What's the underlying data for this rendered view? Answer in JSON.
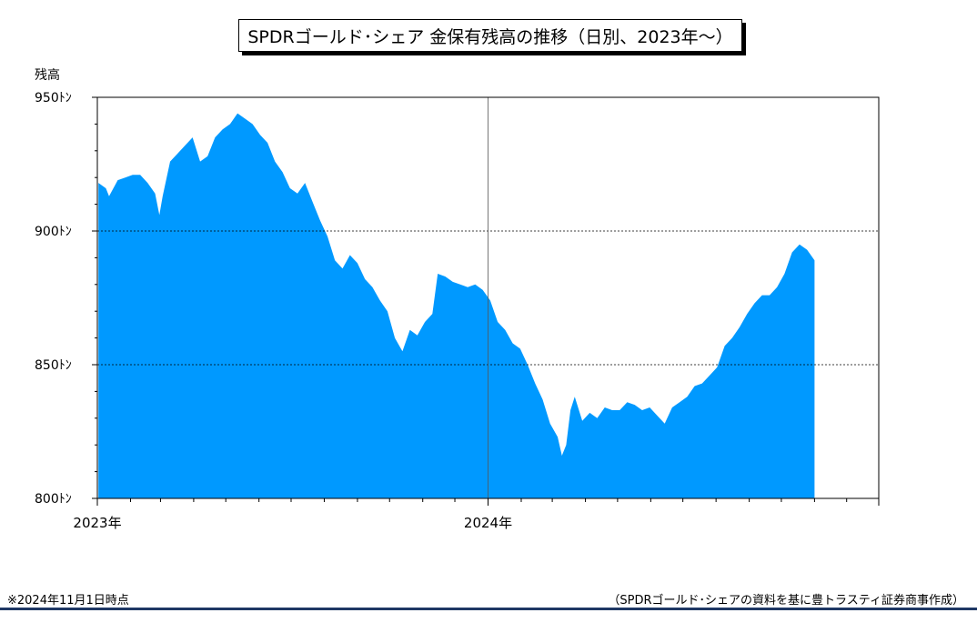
{
  "colors": {
    "area": "#0099ff",
    "rule": "#1f3864"
  },
  "footer": {
    "note": "※2024年11月1日時点",
    "source": "（SPDRゴールド･シェアの資料を基に豊トラスティ証券商事作成）"
  },
  "chart_data": {
    "type": "area",
    "title": "SPDRゴールド･シェア 金保有残高の推移（日別、2023年～）",
    "ylabel": "残高",
    "xlabel": "",
    "ylim": [
      800,
      950
    ],
    "y_ticks": [
      {
        "value": 800,
        "label": "800ﾄﾝ"
      },
      {
        "value": 850,
        "label": "850ﾄﾝ"
      },
      {
        "value": 900,
        "label": "900ﾄﾝ"
      },
      {
        "value": 950,
        "label": "950ﾄﾝ"
      }
    ],
    "x_ticks": [
      {
        "date": "2023-01-01",
        "label": "2023年"
      },
      {
        "date": "2024-01-01",
        "label": "2024年"
      }
    ],
    "xlim": [
      "2023-01-01",
      "2024-12-31"
    ],
    "legend": "none",
    "grid": "horizontal dashed at 850 and 900; vertical at 2024-01-01",
    "series": [
      {
        "values": [
          [
            "2023-01-02",
            918
          ],
          [
            "2023-01-09",
            916
          ],
          [
            "2023-01-12",
            913
          ],
          [
            "2023-01-20",
            919
          ],
          [
            "2023-01-27",
            920
          ],
          [
            "2023-02-03",
            921
          ],
          [
            "2023-02-10",
            921
          ],
          [
            "2023-02-17",
            918
          ],
          [
            "2023-02-24",
            914
          ],
          [
            "2023-02-28",
            906
          ],
          [
            "2023-03-03",
            913
          ],
          [
            "2023-03-10",
            926
          ],
          [
            "2023-03-17",
            929
          ],
          [
            "2023-03-24",
            932
          ],
          [
            "2023-03-31",
            935
          ],
          [
            "2023-04-07",
            926
          ],
          [
            "2023-04-14",
            928
          ],
          [
            "2023-04-21",
            935
          ],
          [
            "2023-04-28",
            938
          ],
          [
            "2023-05-05",
            940
          ],
          [
            "2023-05-12",
            944
          ],
          [
            "2023-05-19",
            942
          ],
          [
            "2023-05-26",
            940
          ],
          [
            "2023-06-02",
            936
          ],
          [
            "2023-06-09",
            933
          ],
          [
            "2023-06-16",
            926
          ],
          [
            "2023-06-23",
            922
          ],
          [
            "2023-06-30",
            916
          ],
          [
            "2023-07-07",
            914
          ],
          [
            "2023-07-14",
            918
          ],
          [
            "2023-07-21",
            911
          ],
          [
            "2023-07-28",
            904
          ],
          [
            "2023-08-04",
            898
          ],
          [
            "2023-08-11",
            889
          ],
          [
            "2023-08-18",
            886
          ],
          [
            "2023-08-25",
            891
          ],
          [
            "2023-09-01",
            888
          ],
          [
            "2023-09-08",
            882
          ],
          [
            "2023-09-15",
            879
          ],
          [
            "2023-09-22",
            874
          ],
          [
            "2023-09-29",
            870
          ],
          [
            "2023-10-06",
            860
          ],
          [
            "2023-10-13",
            855
          ],
          [
            "2023-10-20",
            863
          ],
          [
            "2023-10-27",
            861
          ],
          [
            "2023-11-03",
            866
          ],
          [
            "2023-11-10",
            869
          ],
          [
            "2023-11-15",
            884
          ],
          [
            "2023-11-22",
            883
          ],
          [
            "2023-11-29",
            881
          ],
          [
            "2023-12-06",
            880
          ],
          [
            "2023-12-13",
            879
          ],
          [
            "2023-12-20",
            880
          ],
          [
            "2023-12-27",
            878
          ],
          [
            "2024-01-03",
            874
          ],
          [
            "2024-01-10",
            866
          ],
          [
            "2024-01-17",
            863
          ],
          [
            "2024-01-24",
            858
          ],
          [
            "2024-01-31",
            856
          ],
          [
            "2024-02-07",
            850
          ],
          [
            "2024-02-14",
            843
          ],
          [
            "2024-02-21",
            837
          ],
          [
            "2024-02-28",
            828
          ],
          [
            "2024-03-06",
            823
          ],
          [
            "2024-03-10",
            816
          ],
          [
            "2024-03-14",
            820
          ],
          [
            "2024-03-18",
            833
          ],
          [
            "2024-03-22",
            838
          ],
          [
            "2024-03-29",
            829
          ],
          [
            "2024-04-05",
            832
          ],
          [
            "2024-04-12",
            830
          ],
          [
            "2024-04-19",
            834
          ],
          [
            "2024-04-26",
            833
          ],
          [
            "2024-05-03",
            833
          ],
          [
            "2024-05-10",
            836
          ],
          [
            "2024-05-17",
            835
          ],
          [
            "2024-05-24",
            833
          ],
          [
            "2024-05-31",
            834
          ],
          [
            "2024-06-07",
            831
          ],
          [
            "2024-06-14",
            828
          ],
          [
            "2024-06-21",
            834
          ],
          [
            "2024-06-28",
            836
          ],
          [
            "2024-07-05",
            838
          ],
          [
            "2024-07-12",
            842
          ],
          [
            "2024-07-19",
            843
          ],
          [
            "2024-07-26",
            846
          ],
          [
            "2024-08-02",
            849
          ],
          [
            "2024-08-09",
            857
          ],
          [
            "2024-08-16",
            860
          ],
          [
            "2024-08-23",
            864
          ],
          [
            "2024-08-30",
            869
          ],
          [
            "2024-09-06",
            873
          ],
          [
            "2024-09-13",
            876
          ],
          [
            "2024-09-20",
            876
          ],
          [
            "2024-09-27",
            879
          ],
          [
            "2024-10-04",
            884
          ],
          [
            "2024-10-11",
            892
          ],
          [
            "2024-10-18",
            895
          ],
          [
            "2024-10-25",
            893
          ],
          [
            "2024-11-01",
            889
          ]
        ]
      }
    ]
  }
}
